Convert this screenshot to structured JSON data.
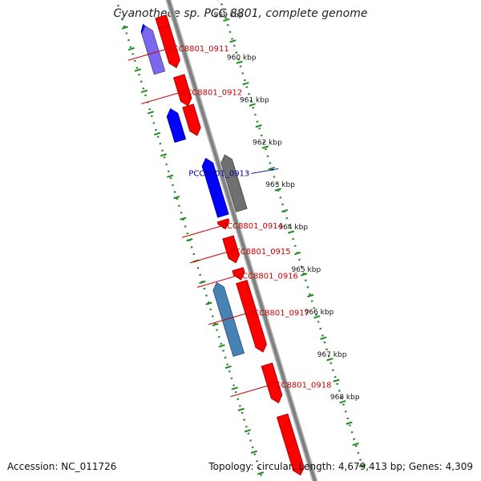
{
  "title": "Cyanothece sp. PCC 8801, complete genome",
  "accession": "Accession: NC_011726",
  "summary": "Topology: circular; Length: 4,679,413 bp; Genes: 4,309",
  "colors": {
    "backbone": "#808080",
    "forward": "#ff0000",
    "reverse": "#0000ff",
    "gray_gene": "#707070",
    "steel_gene": "#4682b4",
    "purple_gene": "#7b68ee",
    "label_forward": "#cc0000",
    "label_reverse": "#000099",
    "dotted": "#228b22"
  },
  "ticks": [
    {
      "label": "959 kbp",
      "kbp": 959
    },
    {
      "label": "960 kbp",
      "kbp": 960
    },
    {
      "label": "961 kbp",
      "kbp": 961
    },
    {
      "label": "962 kbp",
      "kbp": 962
    },
    {
      "label": "963 kbp",
      "kbp": 963
    },
    {
      "label": "964 kbp",
      "kbp": 964
    },
    {
      "label": "965 kbp",
      "kbp": 965
    },
    {
      "label": "966 kbp",
      "kbp": 966
    },
    {
      "label": "967 kbp",
      "kbp": 967
    },
    {
      "label": "968 kbp",
      "kbp": 968
    }
  ],
  "genes": [
    {
      "label": "",
      "start": 958.55,
      "end": 958.75,
      "strand": "-",
      "color_key": "reverse"
    },
    {
      "label": "",
      "start": 958.5,
      "end": 958.9,
      "strand": "+",
      "color_key": "forward"
    },
    {
      "label": "PCC8801_0911",
      "start": 958.75,
      "end": 959.7,
      "strand": "+",
      "color_key": "forward"
    },
    {
      "label": "",
      "start": 958.6,
      "end": 959.7,
      "strand": "-",
      "color_key": "purple_gene"
    },
    {
      "label": "PCC8801_0912",
      "start": 959.9,
      "end": 960.6,
      "strand": "+",
      "color_key": "forward"
    },
    {
      "label": "",
      "start": 960.6,
      "end": 961.3,
      "strand": "+",
      "color_key": "forward"
    },
    {
      "label": "",
      "start": 960.55,
      "end": 961.3,
      "strand": "-",
      "color_key": "reverse"
    },
    {
      "label": "PCC8801_0913",
      "start": 961.9,
      "end": 963.2,
      "strand": "-",
      "color_key": "gray_gene"
    },
    {
      "label": "",
      "start": 961.85,
      "end": 963.2,
      "strand": "-",
      "color_key": "reverse"
    },
    {
      "label": "PCC8801_0914",
      "start": 963.3,
      "end": 963.5,
      "strand": "+",
      "color_key": "forward"
    },
    {
      "label": "PCC8801_0915",
      "start": 963.7,
      "end": 964.3,
      "strand": "+",
      "color_key": "forward"
    },
    {
      "label": "PCC8801_0916",
      "start": 964.45,
      "end": 964.7,
      "strand": "+",
      "color_key": "forward"
    },
    {
      "label": "",
      "start": 964.75,
      "end": 966.4,
      "strand": "+",
      "color_key": "forward"
    },
    {
      "label": "PCC8801_0917",
      "start": 964.6,
      "end": 966.3,
      "strand": "-",
      "color_key": "steel_gene"
    },
    {
      "label": "PCC8801_0918",
      "start": 966.7,
      "end": 967.6,
      "strand": "+",
      "color_key": "forward"
    },
    {
      "label": "",
      "start": 967.9,
      "end": 969.3,
      "strand": "+",
      "color_key": "forward"
    }
  ]
}
